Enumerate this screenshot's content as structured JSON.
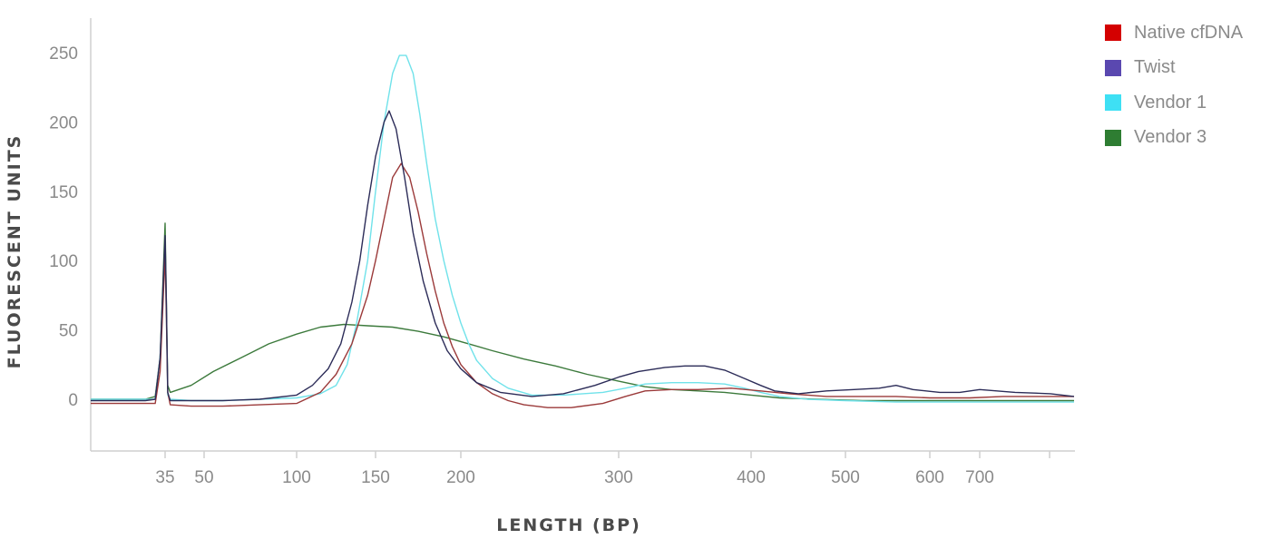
{
  "chart_data": {
    "type": "line",
    "title": "",
    "xlabel": "LENGTH (BP)",
    "ylabel": "FLUORESCENT UNITS",
    "x_ticks": [
      {
        "value": 35,
        "label": "35"
      },
      {
        "value": 50,
        "label": "50"
      },
      {
        "value": 100,
        "label": "100"
      },
      {
        "value": 150,
        "label": "150"
      },
      {
        "value": 200,
        "label": "200"
      },
      {
        "value": 300,
        "label": "300"
      },
      {
        "value": 400,
        "label": "400"
      },
      {
        "value": 500,
        "label": "500"
      },
      {
        "value": 600,
        "label": "600"
      },
      {
        "value": 700,
        "label": "700"
      }
    ],
    "x_scale": "nonlinear (ladder-calibrated)",
    "ylim": [
      -35,
      270
    ],
    "y_ticks": [
      0,
      50,
      100,
      150,
      200,
      250
    ],
    "grid": false,
    "legend_position": "top-right",
    "series": [
      {
        "name": "Native cfDNA",
        "color": "#d40000",
        "line_color": "#9b3a3a",
        "points": [
          [
            20,
            -3
          ],
          [
            31,
            -3
          ],
          [
            33,
            -3
          ],
          [
            34,
            20
          ],
          [
            35,
            105
          ],
          [
            35.5,
            60
          ],
          [
            36,
            5
          ],
          [
            37,
            -4
          ],
          [
            45,
            -5
          ],
          [
            60,
            -5
          ],
          [
            80,
            -4
          ],
          [
            100,
            -3
          ],
          [
            115,
            5
          ],
          [
            125,
            18
          ],
          [
            135,
            40
          ],
          [
            145,
            75
          ],
          [
            150,
            100
          ],
          [
            155,
            130
          ],
          [
            160,
            160
          ],
          [
            165,
            170
          ],
          [
            170,
            160
          ],
          [
            175,
            135
          ],
          [
            180,
            105
          ],
          [
            185,
            78
          ],
          [
            190,
            55
          ],
          [
            195,
            38
          ],
          [
            200,
            25
          ],
          [
            210,
            12
          ],
          [
            220,
            4
          ],
          [
            230,
            -1
          ],
          [
            240,
            -4
          ],
          [
            255,
            -6
          ],
          [
            270,
            -6
          ],
          [
            290,
            -3
          ],
          [
            305,
            2
          ],
          [
            320,
            6
          ],
          [
            340,
            7
          ],
          [
            360,
            7
          ],
          [
            385,
            8
          ],
          [
            410,
            6
          ],
          [
            440,
            4
          ],
          [
            480,
            2
          ],
          [
            520,
            2
          ],
          [
            560,
            2
          ],
          [
            600,
            1
          ],
          [
            640,
            1
          ],
          [
            680,
            1
          ],
          [
            720,
            2
          ],
          [
            750,
            2
          ],
          [
            780,
            2
          ]
        ]
      },
      {
        "name": "Twist",
        "color": "#5a48b0",
        "line_color": "#2c2c58",
        "points": [
          [
            20,
            -1
          ],
          [
            31,
            -1
          ],
          [
            33,
            0
          ],
          [
            34,
            30
          ],
          [
            35,
            118
          ],
          [
            35.5,
            70
          ],
          [
            36,
            5
          ],
          [
            37,
            -1
          ],
          [
            45,
            -1
          ],
          [
            60,
            -1
          ],
          [
            80,
            0
          ],
          [
            100,
            3
          ],
          [
            110,
            10
          ],
          [
            120,
            22
          ],
          [
            128,
            40
          ],
          [
            135,
            70
          ],
          [
            140,
            100
          ],
          [
            145,
            140
          ],
          [
            150,
            175
          ],
          [
            155,
            200
          ],
          [
            158,
            208
          ],
          [
            162,
            195
          ],
          [
            167,
            160
          ],
          [
            172,
            120
          ],
          [
            178,
            85
          ],
          [
            185,
            55
          ],
          [
            192,
            35
          ],
          [
            200,
            22
          ],
          [
            210,
            12
          ],
          [
            225,
            5
          ],
          [
            245,
            2
          ],
          [
            265,
            4
          ],
          [
            285,
            10
          ],
          [
            300,
            16
          ],
          [
            315,
            20
          ],
          [
            335,
            23
          ],
          [
            350,
            24
          ],
          [
            365,
            24
          ],
          [
            380,
            21
          ],
          [
            395,
            15
          ],
          [
            410,
            10
          ],
          [
            425,
            6
          ],
          [
            450,
            4
          ],
          [
            480,
            6
          ],
          [
            510,
            7
          ],
          [
            540,
            8
          ],
          [
            560,
            10
          ],
          [
            580,
            7
          ],
          [
            620,
            5
          ],
          [
            660,
            5
          ],
          [
            700,
            7
          ],
          [
            730,
            5
          ],
          [
            760,
            4
          ],
          [
            780,
            2
          ]
        ]
      },
      {
        "name": "Vendor 1",
        "color": "#3ee0f4",
        "line_color": "#70e2ea",
        "points": [
          [
            20,
            0
          ],
          [
            31,
            0
          ],
          [
            33,
            0
          ],
          [
            34,
            30
          ],
          [
            35,
            110
          ],
          [
            35.5,
            60
          ],
          [
            36,
            3
          ],
          [
            37,
            0
          ],
          [
            45,
            -1
          ],
          [
            60,
            -1
          ],
          [
            80,
            0
          ],
          [
            100,
            1
          ],
          [
            115,
            4
          ],
          [
            125,
            10
          ],
          [
            132,
            25
          ],
          [
            138,
            55
          ],
          [
            145,
            100
          ],
          [
            150,
            150
          ],
          [
            155,
            200
          ],
          [
            160,
            235
          ],
          [
            164,
            248
          ],
          [
            168,
            248
          ],
          [
            172,
            235
          ],
          [
            176,
            205
          ],
          [
            180,
            170
          ],
          [
            185,
            130
          ],
          [
            190,
            100
          ],
          [
            195,
            75
          ],
          [
            200,
            55
          ],
          [
            205,
            40
          ],
          [
            210,
            28
          ],
          [
            220,
            15
          ],
          [
            230,
            8
          ],
          [
            245,
            3
          ],
          [
            265,
            3
          ],
          [
            290,
            5
          ],
          [
            305,
            8
          ],
          [
            320,
            11
          ],
          [
            340,
            12
          ],
          [
            360,
            12
          ],
          [
            380,
            11
          ],
          [
            395,
            8
          ],
          [
            410,
            5
          ],
          [
            430,
            2
          ],
          [
            460,
            0
          ],
          [
            500,
            -1
          ],
          [
            560,
            -2
          ],
          [
            620,
            -2
          ],
          [
            680,
            -2
          ],
          [
            740,
            -2
          ],
          [
            780,
            -2
          ]
        ]
      },
      {
        "name": "Vendor 3",
        "color": "#2e7d32",
        "line_color": "#3c7a3c",
        "points": [
          [
            20,
            0
          ],
          [
            31,
            0
          ],
          [
            33,
            2
          ],
          [
            34,
            30
          ],
          [
            35,
            127
          ],
          [
            35.5,
            70
          ],
          [
            36,
            10
          ],
          [
            37,
            5
          ],
          [
            45,
            10
          ],
          [
            55,
            20
          ],
          [
            70,
            30
          ],
          [
            85,
            40
          ],
          [
            100,
            47
          ],
          [
            115,
            52
          ],
          [
            130,
            54
          ],
          [
            145,
            53
          ],
          [
            160,
            52
          ],
          [
            175,
            49
          ],
          [
            190,
            45
          ],
          [
            205,
            40
          ],
          [
            220,
            35
          ],
          [
            240,
            29
          ],
          [
            260,
            24
          ],
          [
            280,
            18
          ],
          [
            300,
            13
          ],
          [
            320,
            9
          ],
          [
            340,
            7
          ],
          [
            360,
            6
          ],
          [
            380,
            5
          ],
          [
            400,
            3
          ],
          [
            430,
            1
          ],
          [
            470,
            0
          ],
          [
            520,
            -1
          ],
          [
            580,
            -1
          ],
          [
            640,
            -1
          ],
          [
            700,
            -1
          ],
          [
            760,
            -1
          ],
          [
            780,
            -1
          ]
        ]
      }
    ]
  }
}
